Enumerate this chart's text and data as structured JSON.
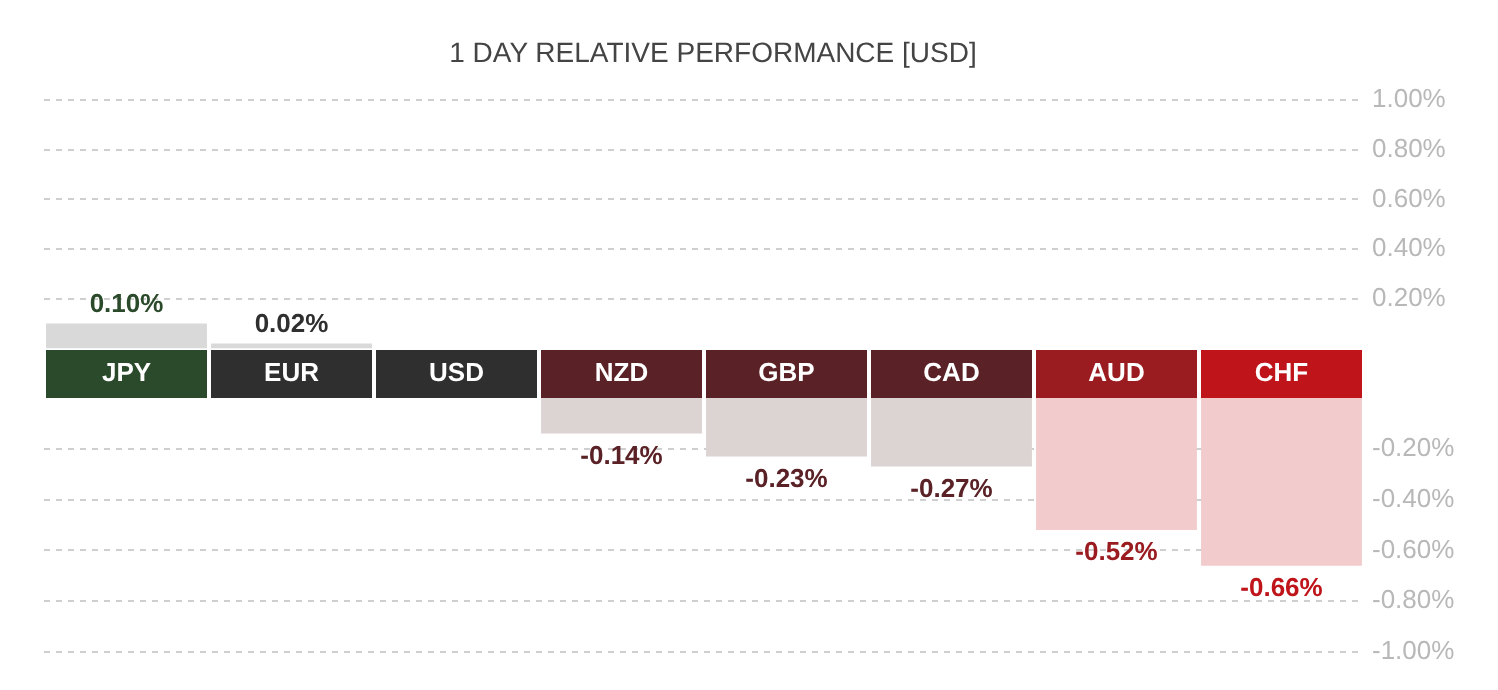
{
  "chart_data": [
    {
      "type": "bar",
      "title": "1 DAY RELATIVE PERFORMANCE  [USD]",
      "categories": [
        null,
        null,
        null,
        null,
        null,
        null,
        null,
        null
      ],
      "values": [
        0.1,
        0.02,
        null,
        null,
        null,
        null,
        null,
        null
      ],
      "colors": [
        "#d9d9d9",
        "#d9d9d9",
        "#d9d9d9",
        "#dcd3d3",
        "#dcd3d3",
        "#dcd3d3",
        "#f2cccc",
        "#f2cccc"
      ],
      "value_labels": [
        "0.10%",
        "0.02%",
        null,
        null,
        null,
        null,
        null,
        null
      ],
      "ylim": [
        0,
        1
      ],
      "yticks": [
        {
          "value": 1,
          "label": "1.00%"
        },
        {
          "value": 0.8,
          "label": "0.80%"
        },
        {
          "value": 0.6,
          "label": "0.60%"
        },
        {
          "value": 0.4,
          "label": "0.40%"
        },
        {
          "value": 0.2,
          "label": "0.20%"
        }
      ],
      "grid": "y",
      "tick_labels": "y",
      "legend": false
    },
    {
      "type": "bar",
      "categories": [
        "JPY",
        "EUR",
        "USD",
        "NZD",
        "GBP",
        "CAD",
        "AUD",
        "CHF"
      ],
      "values": [
        null,
        null,
        null,
        -0.14,
        -0.23,
        -0.27,
        -0.52,
        -0.66
      ],
      "colors": [
        "#d9d9d9",
        "#d9d9d9",
        "#d9d9d9",
        "#dcd3d3",
        "#dcd3d3",
        "#dcd3d3",
        "#f2cccc",
        "#f2cccc"
      ],
      "value_labels": [
        null,
        null,
        null,
        "-0.14%",
        "-0.23%",
        "-0.27%",
        "-0.52%",
        "-0.66%"
      ],
      "ylim": [
        -1,
        0
      ],
      "yticks": [
        {
          "value": -0.2,
          "label": "-0.20%"
        },
        {
          "value": -0.4,
          "label": "-0.40%"
        },
        {
          "value": -0.6,
          "label": "-0.60%"
        },
        {
          "value": -0.8,
          "label": "-0.80%"
        },
        {
          "value": -1,
          "label": "-1.00%"
        }
      ],
      "grid": "y",
      "legend": false
    }
  ]
}
